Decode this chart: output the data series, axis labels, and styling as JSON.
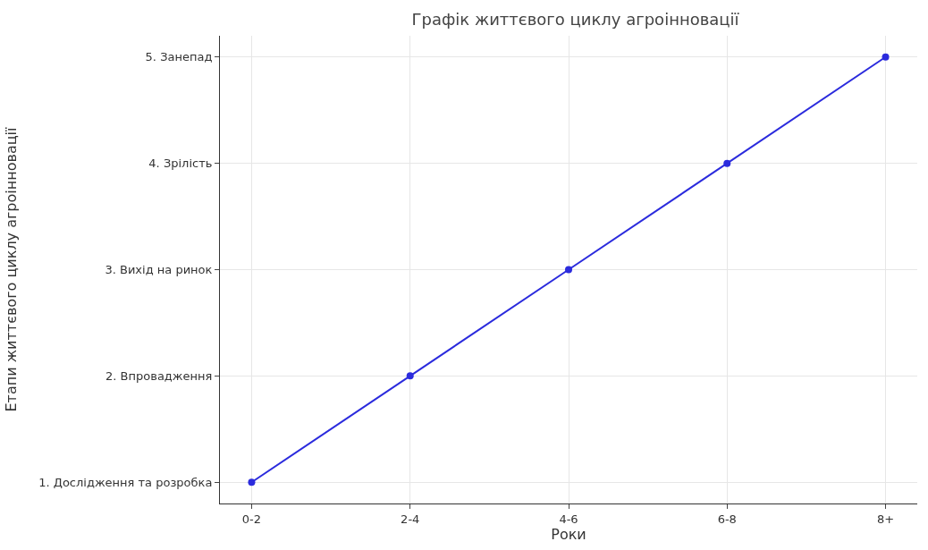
{
  "chart_data": {
    "type": "line",
    "title": "Графік життєвого циклу агроінновації",
    "xlabel": "Роки",
    "ylabel": "Етапи життєвого циклу агроінновації",
    "categories": [
      "0-2",
      "2-4",
      "4-6",
      "6-8",
      "8+"
    ],
    "series": [
      {
        "color": "#2b2bdd",
        "values": [
          1,
          2,
          3,
          4,
          5
        ]
      }
    ],
    "ylim": [
      0.8,
      5.2
    ],
    "yticks": [
      {
        "value": 1,
        "label": "1. Дослідження та розробка"
      },
      {
        "value": 2,
        "label": "2. Впровадження"
      },
      {
        "value": 3,
        "label": "3. Вихід на ринок"
      },
      {
        "value": 4,
        "label": "4. Зрілість"
      },
      {
        "value": 5,
        "label": "5. Занепад"
      }
    ],
    "grid": true,
    "marker": "circle",
    "line_style": "solid"
  }
}
